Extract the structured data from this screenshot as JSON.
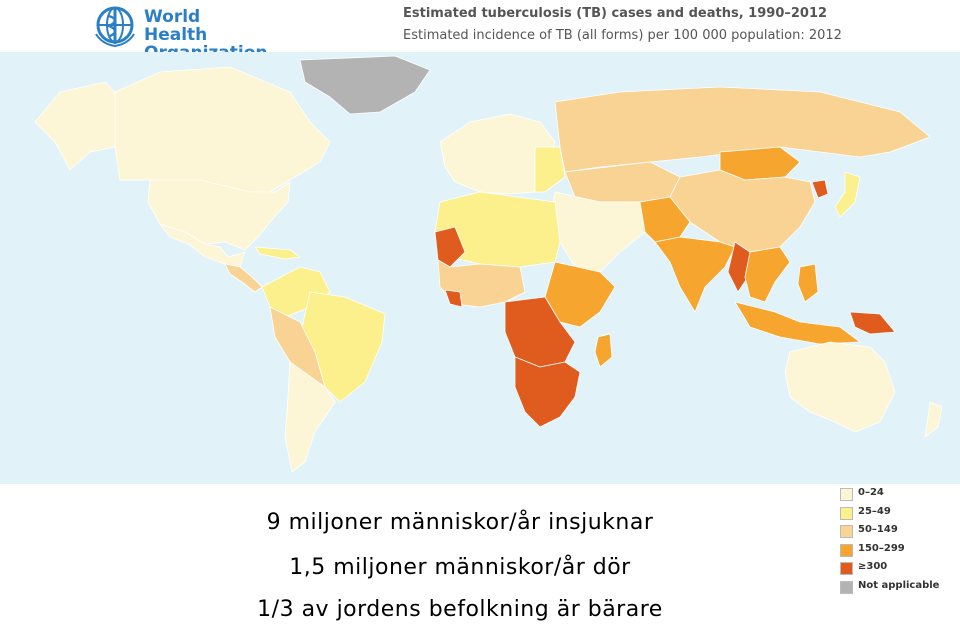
{
  "header": {
    "org_line1": "World Health",
    "org_line2": "Organization",
    "title": "Estimated tuberculosis (TB) cases and deaths, 1990–2012",
    "subtitle": "Estimated incidence of TB (all forms) per 100 000 population: 2012"
  },
  "colors": {
    "ocean": "#e1f3f8",
    "cat_0_24": "#fcf6d6",
    "cat_25_49": "#fbf08c",
    "cat_50_149": "#f8d394",
    "cat_150_299": "#f6a52e",
    "cat_300_plus": "#e05b1e",
    "not_applicable": "#b3b3b3",
    "logo_blue": "#2a7fc6"
  },
  "legend": [
    {
      "label": "0–24",
      "color": "#fcf6d6"
    },
    {
      "label": "25–49",
      "color": "#fbf08c"
    },
    {
      "label": "50–149",
      "color": "#f8d394"
    },
    {
      "label": "150–299",
      "color": "#f6a52e"
    },
    {
      "label": "≥300",
      "color": "#e05b1e"
    },
    {
      "label": "Not applicable",
      "color": "#b3b3b3"
    }
  ],
  "captions": {
    "line1": "9 miljoner människor/år insjuknar",
    "line2": "1,5 miljoner människor/år dör",
    "line3": "1/3 av jordens befolkning är bärare"
  }
}
